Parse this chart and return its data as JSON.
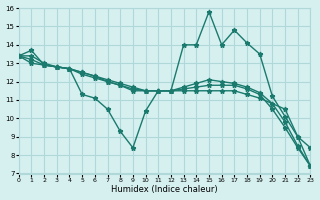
{
  "xlabel": "Humidex (Indice chaleur)",
  "ylabel": "",
  "xlim": [
    0,
    23
  ],
  "ylim": [
    7,
    16
  ],
  "yticks": [
    7,
    8,
    9,
    10,
    11,
    12,
    13,
    14,
    15,
    16
  ],
  "xticks": [
    0,
    1,
    2,
    3,
    4,
    5,
    6,
    7,
    8,
    9,
    10,
    11,
    12,
    13,
    14,
    15,
    16,
    17,
    18,
    19,
    20,
    21,
    22,
    23
  ],
  "bg_color": "#d6f0f0",
  "grid_color": "#b0d8d8",
  "line_color": "#1a7a6e",
  "series": [
    [
      13.4,
      13.7,
      12.9,
      12.8,
      12.7,
      11.3,
      11.1,
      10.5,
      9.3,
      8.4,
      10.4,
      11.5,
      11.5,
      14.0,
      14.0,
      15.8,
      14.0,
      14.8,
      14.1,
      13.5,
      11.2,
      10.1,
      9.0,
      8.4
    ],
    [
      13.4,
      13.0,
      12.9,
      12.8,
      12.7,
      12.4,
      12.2,
      12.0,
      11.8,
      11.5,
      11.5,
      11.5,
      11.5,
      11.5,
      11.5,
      11.5,
      11.5,
      11.5,
      11.3,
      11.1,
      10.8,
      10.5,
      9.0,
      7.4
    ],
    [
      13.4,
      13.2,
      12.9,
      12.8,
      12.7,
      12.5,
      12.3,
      12.1,
      11.9,
      11.7,
      11.5,
      11.5,
      11.5,
      11.6,
      11.7,
      11.8,
      11.8,
      11.8,
      11.6,
      11.3,
      10.5,
      9.5,
      8.4,
      7.4
    ],
    [
      13.4,
      13.4,
      13.0,
      12.8,
      12.7,
      12.5,
      12.3,
      12.0,
      11.8,
      11.6,
      11.5,
      11.5,
      11.5,
      11.7,
      11.9,
      12.1,
      12.0,
      11.9,
      11.7,
      11.4,
      10.8,
      9.8,
      8.5,
      7.4
    ]
  ]
}
